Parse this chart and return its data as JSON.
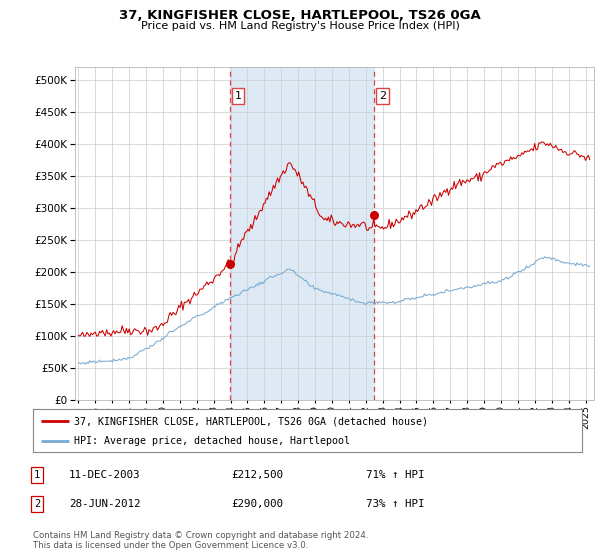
{
  "title": "37, KINGFISHER CLOSE, HARTLEPOOL, TS26 0GA",
  "subtitle": "Price paid vs. HM Land Registry's House Price Index (HPI)",
  "yticks": [
    0,
    50000,
    100000,
    150000,
    200000,
    250000,
    300000,
    350000,
    400000,
    450000,
    500000
  ],
  "ylim": [
    0,
    520000
  ],
  "xlim_start": 1994.8,
  "xlim_end": 2025.5,
  "red_line_color": "#cc0000",
  "blue_line_color": "#7aaacf",
  "shaded_region_color": "#ddeaf5",
  "vline_color": "#dd4444",
  "marker1_date": 2003.94,
  "marker1_value": 212500,
  "marker2_date": 2012.49,
  "marker2_value": 290000,
  "legend_red_label": "37, KINGFISHER CLOSE, HARTLEPOOL, TS26 0GA (detached house)",
  "legend_blue_label": "HPI: Average price, detached house, Hartlepool",
  "annotation1_num": "1",
  "annotation1_date": "11-DEC-2003",
  "annotation1_price": "£212,500",
  "annotation1_hpi": "71% ↑ HPI",
  "annotation2_num": "2",
  "annotation2_date": "28-JUN-2012",
  "annotation2_price": "£290,000",
  "annotation2_hpi": "73% ↑ HPI",
  "footnote": "Contains HM Land Registry data © Crown copyright and database right 2024.\nThis data is licensed under the Open Government Licence v3.0.",
  "background_color": "#ffffff",
  "plot_bg_color": "#ffffff",
  "grid_color": "#cccccc"
}
